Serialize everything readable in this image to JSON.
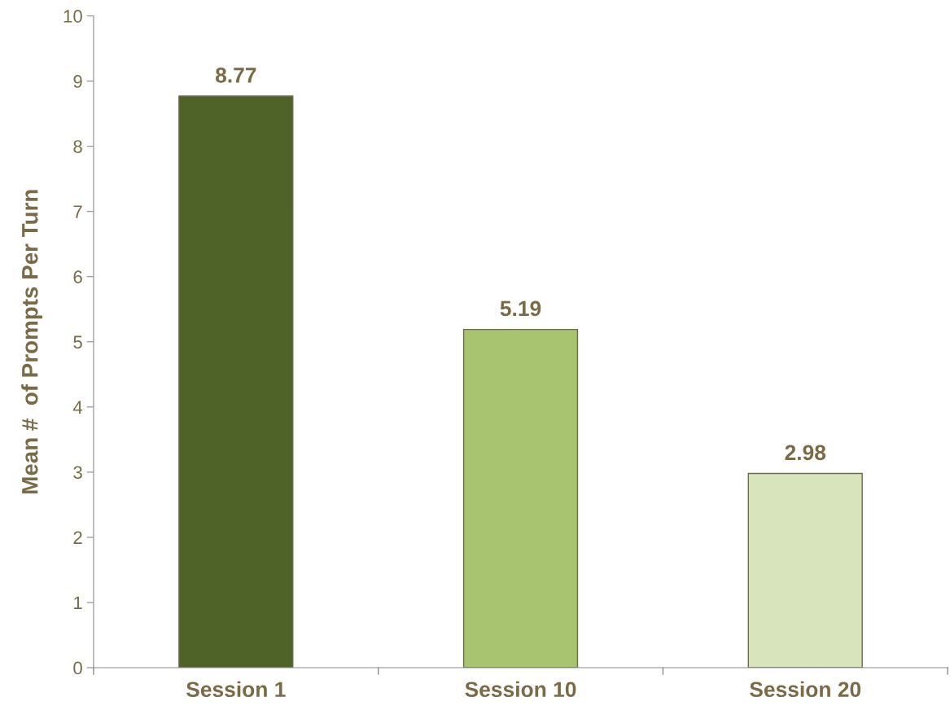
{
  "chart_data": {
    "type": "bar",
    "ylabel": "Mean #  of Prompts Per Turn",
    "categories": [
      "Session 1",
      "Session 10",
      "Session 20"
    ],
    "values": [
      8.77,
      5.19,
      2.98
    ],
    "colors": [
      "#4f6228",
      "#a9c470",
      "#d8e4bc"
    ],
    "ylim": [
      0,
      10
    ],
    "yticks": [
      0,
      1,
      2,
      3,
      4,
      5,
      6,
      7,
      8,
      9,
      10
    ],
    "data_labels": true,
    "grid": false,
    "legend": false
  }
}
